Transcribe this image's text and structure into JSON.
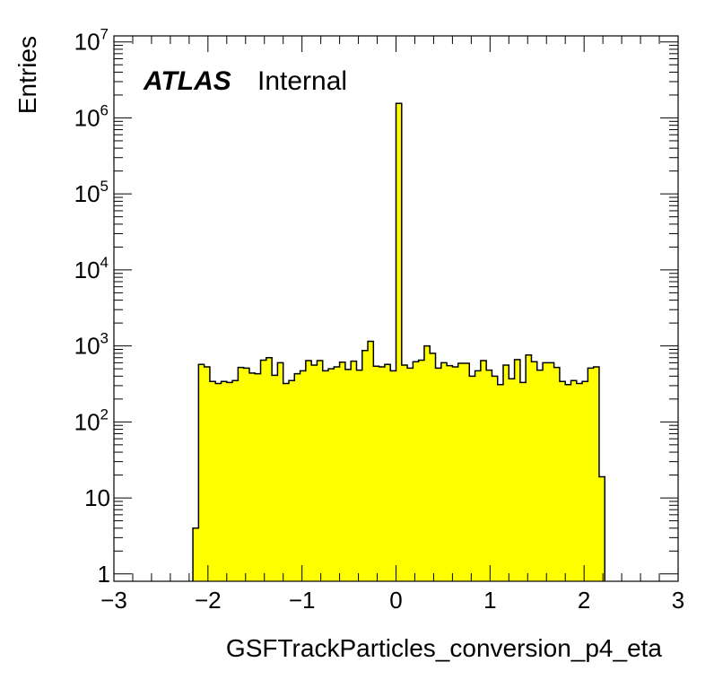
{
  "chart_data": {
    "type": "histogram",
    "xlabel": "GSFTrackParticles_conversion_p4_eta",
    "ylabel": "Entries",
    "label_bold": "ATLAS",
    "label_text": "Internal",
    "xlim": [
      -3,
      3
    ],
    "ylim": [
      0.8,
      12000000
    ],
    "yscale": "log",
    "fill_color": "#ffff00",
    "line_color": "#000000",
    "x_ticks": [
      {
        "value": -3,
        "label": "−3"
      },
      {
        "value": -2,
        "label": "−2"
      },
      {
        "value": -1,
        "label": "−1"
      },
      {
        "value": 0,
        "label": "0"
      },
      {
        "value": 1,
        "label": "1"
      },
      {
        "value": 2,
        "label": "2"
      },
      {
        "value": 3,
        "label": "3"
      }
    ],
    "y_ticks": [
      {
        "value": 1,
        "base": "1",
        "exp": ""
      },
      {
        "value": 10,
        "base": "10",
        "exp": ""
      },
      {
        "value": 100,
        "base": "10",
        "exp": "2"
      },
      {
        "value": 1000,
        "base": "10",
        "exp": "3"
      },
      {
        "value": 10000,
        "base": "10",
        "exp": "4"
      },
      {
        "value": 100000,
        "base": "10",
        "exp": "5"
      },
      {
        "value": 1000000,
        "base": "10",
        "exp": "6"
      },
      {
        "value": 10000000,
        "base": "10",
        "exp": "7"
      }
    ],
    "bin_width": 0.06,
    "bins": [
      {
        "x_low": -2.16,
        "value": 4
      },
      {
        "x_low": -2.1,
        "value": 570
      },
      {
        "x_low": -2.04,
        "value": 530
      },
      {
        "x_low": -1.98,
        "value": 340
      },
      {
        "x_low": -1.92,
        "value": 320
      },
      {
        "x_low": -1.86,
        "value": 340
      },
      {
        "x_low": -1.8,
        "value": 330
      },
      {
        "x_low": -1.74,
        "value": 350
      },
      {
        "x_low": -1.68,
        "value": 520
      },
      {
        "x_low": -1.62,
        "value": 510
      },
      {
        "x_low": -1.56,
        "value": 440
      },
      {
        "x_low": -1.5,
        "value": 430
      },
      {
        "x_low": -1.44,
        "value": 650
      },
      {
        "x_low": -1.38,
        "value": 700
      },
      {
        "x_low": -1.32,
        "value": 410
      },
      {
        "x_low": -1.26,
        "value": 600
      },
      {
        "x_low": -1.2,
        "value": 320
      },
      {
        "x_low": -1.14,
        "value": 350
      },
      {
        "x_low": -1.08,
        "value": 430
      },
      {
        "x_low": -1.02,
        "value": 470
      },
      {
        "x_low": -0.96,
        "value": 640
      },
      {
        "x_low": -0.9,
        "value": 560
      },
      {
        "x_low": -0.84,
        "value": 640
      },
      {
        "x_low": -0.78,
        "value": 470
      },
      {
        "x_low": -0.72,
        "value": 500
      },
      {
        "x_low": -0.66,
        "value": 530
      },
      {
        "x_low": -0.6,
        "value": 610
      },
      {
        "x_low": -0.54,
        "value": 490
      },
      {
        "x_low": -0.48,
        "value": 630
      },
      {
        "x_low": -0.42,
        "value": 480
      },
      {
        "x_low": -0.36,
        "value": 870
      },
      {
        "x_low": -0.3,
        "value": 1150
      },
      {
        "x_low": -0.24,
        "value": 540
      },
      {
        "x_low": -0.18,
        "value": 530
      },
      {
        "x_low": -0.12,
        "value": 570
      },
      {
        "x_low": -0.06,
        "value": 470
      },
      {
        "x_low": 0.0,
        "value": 1550000
      },
      {
        "x_low": 0.06,
        "value": 560
      },
      {
        "x_low": 0.12,
        "value": 510
      },
      {
        "x_low": 0.18,
        "value": 620
      },
      {
        "x_low": 0.24,
        "value": 650
      },
      {
        "x_low": 0.3,
        "value": 1000
      },
      {
        "x_low": 0.36,
        "value": 800
      },
      {
        "x_low": 0.42,
        "value": 510
      },
      {
        "x_low": 0.48,
        "value": 600
      },
      {
        "x_low": 0.54,
        "value": 550
      },
      {
        "x_low": 0.6,
        "value": 530
      },
      {
        "x_low": 0.66,
        "value": 590
      },
      {
        "x_low": 0.72,
        "value": 590
      },
      {
        "x_low": 0.78,
        "value": 400
      },
      {
        "x_low": 0.84,
        "value": 470
      },
      {
        "x_low": 0.9,
        "value": 640
      },
      {
        "x_low": 0.96,
        "value": 480
      },
      {
        "x_low": 1.02,
        "value": 400
      },
      {
        "x_low": 1.08,
        "value": 310
      },
      {
        "x_low": 1.14,
        "value": 560
      },
      {
        "x_low": 1.2,
        "value": 370
      },
      {
        "x_low": 1.26,
        "value": 660
      },
      {
        "x_low": 1.32,
        "value": 330
      },
      {
        "x_low": 1.38,
        "value": 760
      },
      {
        "x_low": 1.44,
        "value": 620
      },
      {
        "x_low": 1.5,
        "value": 480
      },
      {
        "x_low": 1.56,
        "value": 600
      },
      {
        "x_low": 1.62,
        "value": 600
      },
      {
        "x_low": 1.68,
        "value": 520
      },
      {
        "x_low": 1.74,
        "value": 340
      },
      {
        "x_low": 1.8,
        "value": 310
      },
      {
        "x_low": 1.86,
        "value": 350
      },
      {
        "x_low": 1.92,
        "value": 320
      },
      {
        "x_low": 1.98,
        "value": 340
      },
      {
        "x_low": 2.04,
        "value": 510
      },
      {
        "x_low": 2.1,
        "value": 530
      },
      {
        "x_low": 2.16,
        "value": 19
      }
    ]
  }
}
